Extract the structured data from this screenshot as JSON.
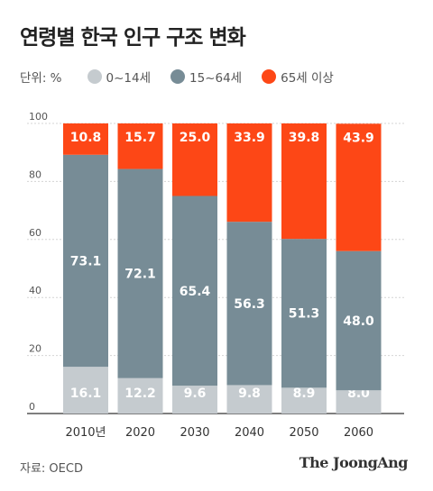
{
  "title": "연령별 한국 인구 구조 변화",
  "unit_label": "단위: %",
  "source": "자료: OECD",
  "brand": "The JoongAng",
  "colors": {
    "young": "#c5cbcf",
    "working": "#778c96",
    "elderly": "#fd4716",
    "axis_text": "#555555",
    "grid": "#d4d4d4"
  },
  "chart_data": {
    "type": "bar",
    "stacked": true,
    "categories": [
      "2010년",
      "2020",
      "2030",
      "2040",
      "2050",
      "2060"
    ],
    "series": [
      {
        "name": "0~14세",
        "values": [
          16.1,
          12.2,
          9.6,
          9.8,
          8.9,
          8.0
        ]
      },
      {
        "name": "15~64세",
        "values": [
          73.1,
          72.1,
          65.4,
          56.3,
          51.3,
          48.0
        ]
      },
      {
        "name": "65세 이상",
        "values": [
          10.8,
          15.7,
          25.0,
          33.9,
          39.8,
          43.9
        ]
      }
    ],
    "data_labels": [
      [
        "16.1",
        "12.2",
        "9.6",
        "9.8",
        "8.9",
        "8.0"
      ],
      [
        "73.1",
        "72.1",
        "65.4",
        "56.3",
        "51.3",
        "48.0"
      ],
      [
        "10.8",
        "15.7",
        "25.0",
        "33.9",
        "39.8",
        "43.9"
      ]
    ],
    "ylim": [
      0,
      100
    ],
    "yticks": [
      "0",
      "20",
      "40",
      "60",
      "80",
      "100"
    ],
    "grid": true,
    "legend_position": "top-left"
  }
}
